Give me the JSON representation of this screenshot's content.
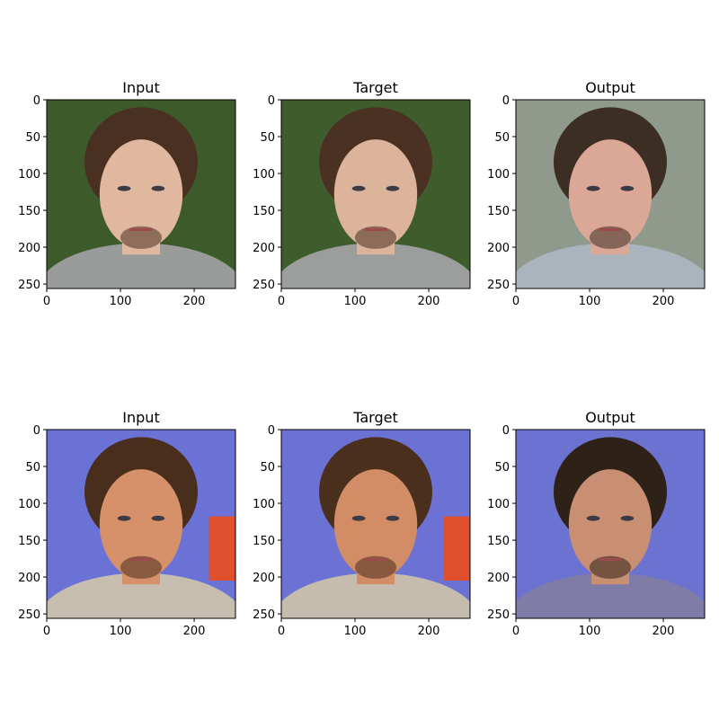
{
  "figure": {
    "panels": [
      {
        "title": "Input",
        "image": {
          "subject": "young man, tousled brown hair, goatee, grey jacket, green foliage background",
          "bg": "#3d5a2a",
          "hair": "#4a3020",
          "skin": "#e0b8a0",
          "shirt": "#9a9c9c"
        },
        "xticks": [
          "0",
          "100",
          "200"
        ],
        "yticks": [
          "0",
          "50",
          "100",
          "150",
          "200",
          "250"
        ]
      },
      {
        "title": "Target",
        "image": {
          "subject": "young man, tousled brown hair, goatee, grey jacket, green foliage background",
          "bg": "#3f5c2c",
          "hair": "#4b3122",
          "skin": "#dcb49c",
          "shirt": "#9c9e9e"
        },
        "xticks": [
          "0",
          "100",
          "200"
        ],
        "yticks": [
          "0",
          "50",
          "100",
          "150",
          "200",
          "250"
        ]
      },
      {
        "title": "Output",
        "image": {
          "subject": "generated face, brown hair, goatee, blurry grey background",
          "bg": "#8f9a8c",
          "hair": "#3d2e24",
          "skin": "#dba898",
          "shirt": "#a9b4bc"
        },
        "xticks": [
          "0",
          "100",
          "200"
        ],
        "yticks": [
          "0",
          "50",
          "100",
          "150",
          "200",
          "250"
        ]
      },
      {
        "title": "Input",
        "image": {
          "subject": "man with short brown hair, stubble beard, blue background, red patch at right",
          "bg": "#6a72d6",
          "hair": "#4a2e1c",
          "skin": "#d6906a",
          "shirt": "#c7beb0"
        },
        "xticks": [
          "0",
          "100",
          "200"
        ],
        "yticks": [
          "0",
          "50",
          "100",
          "150",
          "200",
          "250"
        ]
      },
      {
        "title": "Target",
        "image": {
          "subject": "man with short brown hair, stubble beard, blue background, red patch at right",
          "bg": "#6b72d4",
          "hair": "#4b2f1d",
          "skin": "#d28c66",
          "shirt": "#c5bcae"
        },
        "xticks": [
          "0",
          "100",
          "200"
        ],
        "yticks": [
          "0",
          "50",
          "100",
          "150",
          "200",
          "250"
        ]
      },
      {
        "title": "Output",
        "image": {
          "subject": "generated face, dark hair, stubble beard, blue background",
          "bg": "#6c72d0",
          "hair": "#2e2218",
          "skin": "#c98f72",
          "shirt": "#7f7da8"
        },
        "xticks": [
          "0",
          "100",
          "200"
        ],
        "yticks": [
          "0",
          "50",
          "100",
          "150",
          "200",
          "250"
        ]
      }
    ]
  }
}
